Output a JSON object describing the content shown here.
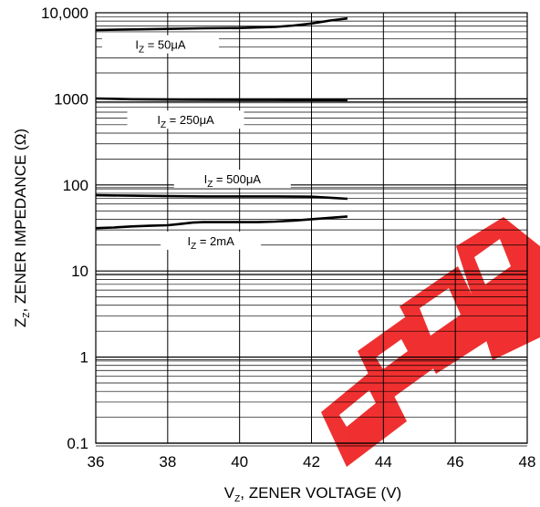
{
  "chart_data": {
    "type": "line",
    "x_scale": "linear",
    "y_scale": "log",
    "xlim": [
      36,
      48
    ],
    "ylim": [
      0.1,
      10000
    ],
    "x_ticks": [
      36,
      38,
      40,
      42,
      44,
      46,
      48
    ],
    "y_ticks": [
      0.1,
      1,
      10,
      100,
      1000,
      10000
    ],
    "x_tick_labels": [
      "36",
      "38",
      "40",
      "42",
      "44",
      "46",
      "48"
    ],
    "y_tick_labels": [
      "0.1",
      "1",
      "10",
      "100",
      "1000",
      "10,000"
    ],
    "xlabel": {
      "main": "V",
      "sub": "Z",
      "rest": ", ZENER VOLTAGE (V)"
    },
    "ylabel": {
      "main": "Z",
      "sub": "Z",
      "rest": ", ZENER IMPEDANCE (Ω)"
    },
    "grid": true,
    "series": [
      {
        "label": {
          "main": "I",
          "sub": "Z",
          "rest": " = 50μA"
        },
        "x": [
          36,
          37,
          38,
          39,
          40,
          41,
          41.5,
          42,
          42.5,
          43
        ],
        "y": [
          6300,
          6400,
          6500,
          6600,
          6650,
          6850,
          7100,
          7500,
          8100,
          8600
        ]
      },
      {
        "label": {
          "main": "I",
          "sub": "Z",
          "rest": " = 250μA"
        },
        "x": [
          36,
          37,
          38,
          39,
          40,
          41,
          42,
          43
        ],
        "y": [
          1010,
          990,
          980,
          975,
          972,
          970,
          962,
          955
        ]
      },
      {
        "label": {
          "main": "I",
          "sub": "Z",
          "rest": " = 500μA"
        },
        "x": [
          36,
          37,
          38,
          39,
          40,
          41,
          42,
          42.5,
          43
        ],
        "y": [
          76,
          75,
          74,
          73.5,
          73.5,
          73.5,
          73,
          71,
          69
        ]
      },
      {
        "label": {
          "main": "I",
          "sub": "Z",
          "rest": " = 2mA"
        },
        "x": [
          36,
          36.5,
          37,
          37.5,
          38,
          38.3,
          38.7,
          39,
          39.5,
          40,
          40.5,
          41,
          41.5,
          42,
          42.5,
          43
        ],
        "y": [
          31.5,
          32,
          33,
          33.5,
          34,
          35,
          36.5,
          37,
          37,
          37,
          37,
          37.5,
          38.5,
          40,
          41.5,
          43
        ]
      }
    ]
  }
}
